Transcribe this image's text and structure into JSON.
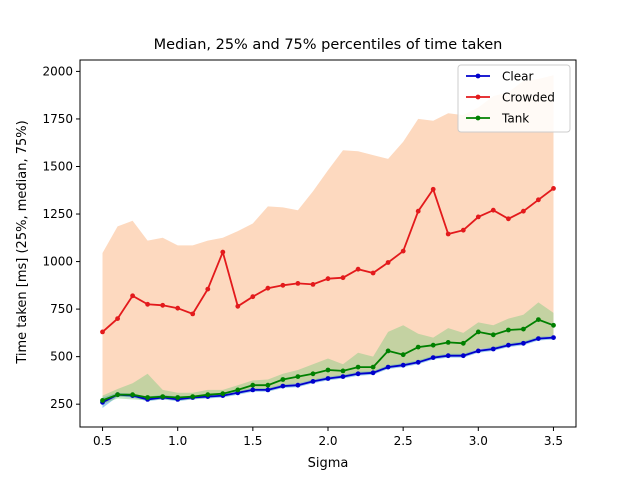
{
  "chart_data": {
    "type": "line",
    "title": "Median, 25% and 75% percentiles of time taken",
    "xlabel": "Sigma",
    "ylabel": "Time taken [ms] (25%, median, 75%)",
    "xlim": [
      0.35,
      3.65
    ],
    "ylim": [
      130,
      2060
    ],
    "xticks": [
      0.5,
      1.0,
      1.5,
      2.0,
      2.5,
      3.0,
      3.5
    ],
    "xtick_labels": [
      "0.5",
      "1.0",
      "1.5",
      "2.0",
      "2.5",
      "3.0",
      "3.5"
    ],
    "yticks": [
      250,
      500,
      750,
      1000,
      1250,
      1500,
      1750,
      2000
    ],
    "ytick_labels": [
      "250",
      "500",
      "750",
      "1000",
      "1250",
      "1500",
      "1750",
      "2000"
    ],
    "grid": false,
    "legend_position": "top-right",
    "x": [
      0.5,
      0.6,
      0.7,
      0.8,
      0.9,
      1.0,
      1.1,
      1.2,
      1.3,
      1.4,
      1.5,
      1.6,
      1.7,
      1.8,
      1.9,
      2.0,
      2.1,
      2.2,
      2.3,
      2.4,
      2.5,
      2.6,
      2.7,
      2.8,
      2.9,
      3.0,
      3.1,
      3.2,
      3.3,
      3.4,
      3.5
    ],
    "series": [
      {
        "name": "Clear",
        "color": "#0000cc",
        "band_color": "#2a8fd6",
        "median": [
          260,
          300,
          295,
          275,
          285,
          275,
          285,
          290,
          295,
          310,
          325,
          325,
          345,
          350,
          370,
          385,
          395,
          410,
          415,
          445,
          455,
          470,
          495,
          505,
          505,
          530,
          540,
          560,
          570,
          595,
          600
        ],
        "p25": [
          230,
          290,
          285,
          265,
          275,
          265,
          275,
          280,
          285,
          300,
          315,
          315,
          335,
          340,
          360,
          375,
          385,
          400,
          405,
          435,
          445,
          460,
          485,
          495,
          495,
          520,
          530,
          550,
          560,
          585,
          590
        ],
        "p75": [
          285,
          310,
          305,
          290,
          300,
          290,
          295,
          300,
          305,
          320,
          335,
          335,
          355,
          360,
          380,
          395,
          405,
          420,
          425,
          455,
          465,
          480,
          505,
          515,
          515,
          540,
          550,
          570,
          580,
          605,
          610
        ]
      },
      {
        "name": "Crowded",
        "color": "#e31a1c",
        "band_color": "#fdd9bf",
        "median": [
          630,
          700,
          820,
          775,
          770,
          755,
          725,
          855,
          1050,
          765,
          815,
          860,
          875,
          885,
          880,
          910,
          915,
          960,
          940,
          995,
          1055,
          1265,
          1380,
          1145,
          1165,
          1235,
          1270,
          1225,
          1265,
          1325,
          1385
        ],
        "p25": [
          250,
          290,
          290,
          290,
          290,
          285,
          290,
          300,
          300,
          310,
          320,
          330,
          345,
          355,
          370,
          385,
          400,
          410,
          420,
          440,
          455,
          470,
          490,
          500,
          505,
          530,
          540,
          560,
          570,
          595,
          600
        ],
        "p75": [
          1045,
          1185,
          1215,
          1110,
          1125,
          1085,
          1085,
          1110,
          1125,
          1160,
          1200,
          1290,
          1285,
          1270,
          1370,
          1480,
          1585,
          1580,
          1560,
          1540,
          1630,
          1750,
          1740,
          1780,
          1770,
          1810,
          1870,
          1890,
          1950,
          1960,
          1980
        ]
      },
      {
        "name": "Tank",
        "color": "#008000",
        "band_color": "#7fc97f",
        "median": [
          270,
          300,
          300,
          285,
          290,
          285,
          290,
          300,
          305,
          325,
          350,
          350,
          380,
          395,
          410,
          430,
          425,
          445,
          445,
          530,
          510,
          550,
          560,
          575,
          570,
          630,
          615,
          640,
          645,
          695,
          665
        ],
        "p25": [
          250,
          280,
          275,
          270,
          275,
          270,
          275,
          285,
          290,
          305,
          325,
          330,
          350,
          360,
          375,
          395,
          395,
          410,
          410,
          440,
          455,
          470,
          495,
          505,
          505,
          545,
          545,
          565,
          570,
          600,
          610
        ],
        "p75": [
          295,
          330,
          360,
          410,
          325,
          310,
          310,
          325,
          325,
          350,
          375,
          380,
          410,
          430,
          460,
          490,
          460,
          520,
          500,
          630,
          665,
          620,
          600,
          650,
          625,
          680,
          665,
          700,
          720,
          785,
          730
        ]
      }
    ]
  }
}
